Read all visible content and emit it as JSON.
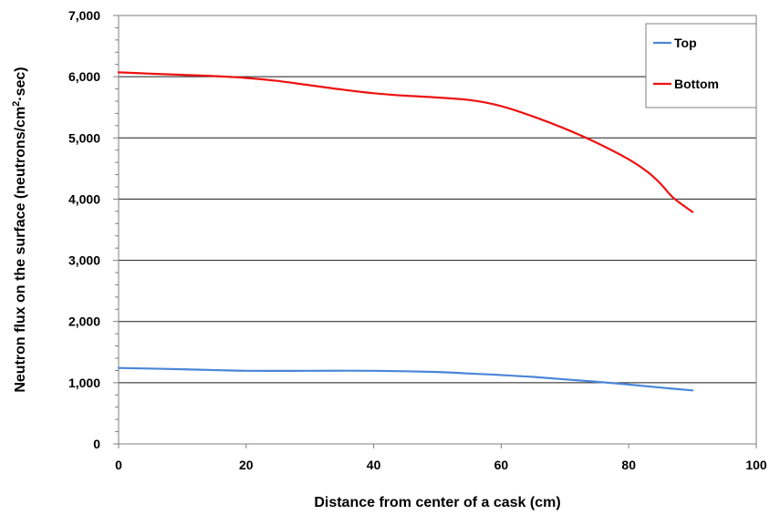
{
  "chart_data": {
    "type": "line",
    "title": "",
    "xlabel": "Distance from center of a cask (cm)",
    "ylabel_pre": "Neutron flux on the surface (neutrons/cm",
    "ylabel_sup": "2",
    "ylabel_post": "·sec)",
    "xlim": [
      0,
      100
    ],
    "ylim": [
      0,
      7000
    ],
    "x_ticks": [
      0,
      20,
      40,
      60,
      80,
      100
    ],
    "x_tick_labels": [
      "0",
      "20",
      "40",
      "60",
      "80",
      "100"
    ],
    "y_ticks": [
      0,
      1000,
      2000,
      3000,
      4000,
      5000,
      6000,
      7000
    ],
    "y_tick_labels": [
      "0",
      "1,000",
      "2,000",
      "3,000",
      "4,000",
      "5,000",
      "6,000",
      "7,000"
    ],
    "grid": "horizontal",
    "legend_position": "top-right",
    "series": [
      {
        "name": "Top",
        "color": "#4a86d8",
        "x": [
          0,
          10,
          20,
          30,
          40,
          50,
          55,
          60,
          65,
          70,
          75,
          80,
          85,
          90
        ],
        "y": [
          1240,
          1220,
          1195,
          1195,
          1195,
          1175,
          1150,
          1125,
          1095,
          1055,
          1015,
          970,
          920,
          875
        ]
      },
      {
        "name": "Bottom",
        "color": "#ee1111",
        "x": [
          0,
          5,
          10,
          15,
          20,
          25,
          30,
          35,
          40,
          45,
          50,
          55,
          60,
          65,
          70,
          75,
          80,
          83,
          85,
          87,
          90
        ],
        "y": [
          6070,
          6050,
          6030,
          6010,
          5980,
          5930,
          5860,
          5790,
          5730,
          5690,
          5660,
          5620,
          5520,
          5350,
          5150,
          4920,
          4650,
          4440,
          4250,
          4020,
          3790
        ]
      }
    ]
  }
}
